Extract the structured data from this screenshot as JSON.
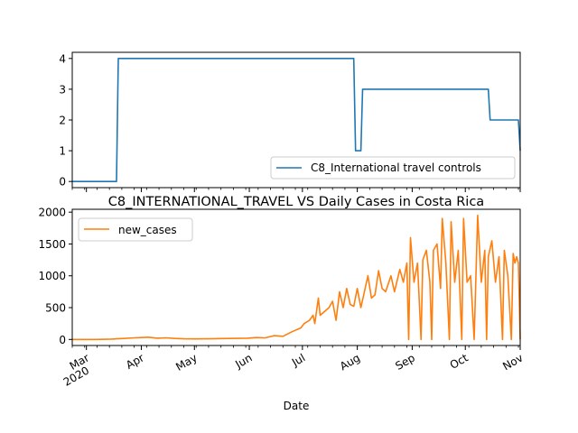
{
  "chart_data": [
    {
      "type": "line",
      "title": "",
      "xlabel": "",
      "ylabel": "",
      "x_range": [
        "2020-02-22",
        "2020-11-01"
      ],
      "ylim": [
        -0.2,
        4.2
      ],
      "y_ticks": [
        "0",
        "1",
        "2",
        "3",
        "4"
      ],
      "grid": false,
      "legend_position": "lower right",
      "series": [
        {
          "name": "C8_International travel controls",
          "color": "#1f77b4",
          "points": [
            [
              "2020-02-22",
              0
            ],
            [
              "2020-03-18",
              0
            ],
            [
              "2020-03-19",
              4
            ],
            [
              "2020-07-30",
              4
            ],
            [
              "2020-07-31",
              1
            ],
            [
              "2020-08-03",
              1
            ],
            [
              "2020-08-04",
              3
            ],
            [
              "2020-10-14",
              3
            ],
            [
              "2020-10-15",
              2
            ],
            [
              "2020-10-31",
              2
            ],
            [
              "2020-11-01",
              1
            ]
          ]
        }
      ]
    },
    {
      "type": "line",
      "title": "C8_INTERNATIONAL_TRAVEL VS Daily Cases in Costa Rica",
      "xlabel": "Date",
      "ylabel": "",
      "x_range": [
        "2020-02-22",
        "2020-11-01"
      ],
      "ylim": [
        -95,
        2045
      ],
      "y_ticks": [
        "0",
        "500",
        "1000",
        "1500",
        "2000"
      ],
      "x_ticks": [
        {
          "date": "2020-03-01",
          "label": "Mar",
          "sublabel": "2020"
        },
        {
          "date": "2020-04-01",
          "label": "Apr",
          "sublabel": ""
        },
        {
          "date": "2020-05-01",
          "label": "May",
          "sublabel": ""
        },
        {
          "date": "2020-06-01",
          "label": "Jun",
          "sublabel": ""
        },
        {
          "date": "2020-07-01",
          "label": "Jul",
          "sublabel": ""
        },
        {
          "date": "2020-08-01",
          "label": "Aug",
          "sublabel": ""
        },
        {
          "date": "2020-09-01",
          "label": "Sep",
          "sublabel": ""
        },
        {
          "date": "2020-10-01",
          "label": "Oct",
          "sublabel": ""
        },
        {
          "date": "2020-11-01",
          "label": "Nov",
          "sublabel": ""
        }
      ],
      "grid": false,
      "legend_position": "upper left",
      "series": [
        {
          "name": "new_cases",
          "color": "#ff7f0e",
          "points": [
            [
              "2020-02-22",
              0
            ],
            [
              "2020-03-06",
              0
            ],
            [
              "2020-03-15",
              5
            ],
            [
              "2020-03-22",
              15
            ],
            [
              "2020-03-28",
              25
            ],
            [
              "2020-04-01",
              30
            ],
            [
              "2020-04-05",
              35
            ],
            [
              "2020-04-10",
              20
            ],
            [
              "2020-04-15",
              25
            ],
            [
              "2020-04-20",
              15
            ],
            [
              "2020-04-25",
              10
            ],
            [
              "2020-05-01",
              8
            ],
            [
              "2020-05-10",
              10
            ],
            [
              "2020-05-20",
              15
            ],
            [
              "2020-05-31",
              20
            ],
            [
              "2020-06-05",
              30
            ],
            [
              "2020-06-10",
              25
            ],
            [
              "2020-06-15",
              60
            ],
            [
              "2020-06-20",
              50
            ],
            [
              "2020-06-25",
              120
            ],
            [
              "2020-06-30",
              180
            ],
            [
              "2020-07-02",
              250
            ],
            [
              "2020-07-05",
              300
            ],
            [
              "2020-07-07",
              380
            ],
            [
              "2020-07-08",
              250
            ],
            [
              "2020-07-10",
              650
            ],
            [
              "2020-07-11",
              380
            ],
            [
              "2020-07-14",
              450
            ],
            [
              "2020-07-16",
              500
            ],
            [
              "2020-07-18",
              600
            ],
            [
              "2020-07-20",
              300
            ],
            [
              "2020-07-22",
              750
            ],
            [
              "2020-07-24",
              500
            ],
            [
              "2020-07-26",
              800
            ],
            [
              "2020-07-28",
              550
            ],
            [
              "2020-07-30",
              520
            ],
            [
              "2020-08-01",
              800
            ],
            [
              "2020-08-03",
              500
            ],
            [
              "2020-08-05",
              750
            ],
            [
              "2020-08-07",
              1000
            ],
            [
              "2020-08-09",
              650
            ],
            [
              "2020-08-11",
              700
            ],
            [
              "2020-08-13",
              1080
            ],
            [
              "2020-08-15",
              800
            ],
            [
              "2020-08-17",
              750
            ],
            [
              "2020-08-20",
              1000
            ],
            [
              "2020-08-22",
              750
            ],
            [
              "2020-08-25",
              1100
            ],
            [
              "2020-08-27",
              900
            ],
            [
              "2020-08-29",
              1200
            ],
            [
              "2020-08-30",
              0
            ],
            [
              "2020-08-31",
              1600
            ],
            [
              "2020-09-02",
              900
            ],
            [
              "2020-09-04",
              1200
            ],
            [
              "2020-09-06",
              0
            ],
            [
              "2020-09-07",
              1250
            ],
            [
              "2020-09-09",
              1400
            ],
            [
              "2020-09-11",
              900
            ],
            [
              "2020-09-12",
              0
            ],
            [
              "2020-09-13",
              1400
            ],
            [
              "2020-09-15",
              1500
            ],
            [
              "2020-09-17",
              800
            ],
            [
              "2020-09-18",
              1900
            ],
            [
              "2020-09-20",
              1200
            ],
            [
              "2020-09-22",
              0
            ],
            [
              "2020-09-23",
              1850
            ],
            [
              "2020-09-25",
              900
            ],
            [
              "2020-09-27",
              1400
            ],
            [
              "2020-09-29",
              0
            ],
            [
              "2020-09-30",
              1900
            ],
            [
              "2020-10-02",
              900
            ],
            [
              "2020-10-04",
              1000
            ],
            [
              "2020-10-06",
              0
            ],
            [
              "2020-10-08",
              1950
            ],
            [
              "2020-10-10",
              900
            ],
            [
              "2020-10-12",
              1400
            ],
            [
              "2020-10-13",
              0
            ],
            [
              "2020-10-14",
              1300
            ],
            [
              "2020-10-16",
              1550
            ],
            [
              "2020-10-18",
              900
            ],
            [
              "2020-10-20",
              1300
            ],
            [
              "2020-10-22",
              0
            ],
            [
              "2020-10-23",
              1400
            ],
            [
              "2020-10-25",
              1000
            ],
            [
              "2020-10-27",
              0
            ],
            [
              "2020-10-28",
              1350
            ],
            [
              "2020-10-29",
              1200
            ],
            [
              "2020-10-30",
              1300
            ],
            [
              "2020-10-31",
              1200
            ],
            [
              "2020-11-01",
              0
            ]
          ]
        }
      ]
    }
  ]
}
